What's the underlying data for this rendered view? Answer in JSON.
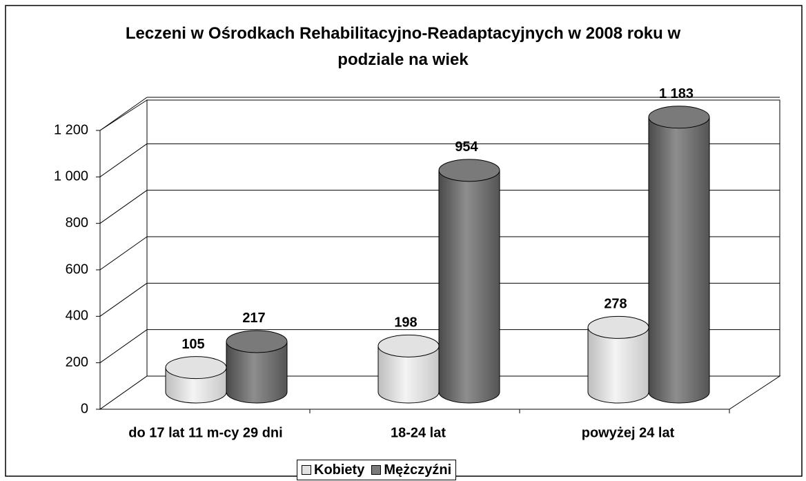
{
  "chart_data": {
    "type": "bar3d-cylinder",
    "title": "Leczeni w Ośrodkach Rehabilitacyjno-Readaptacyjnych w 2008 roku w podziale na wiek",
    "categories": [
      "do 17 lat 11 m-cy 29 dni",
      "18-24 lat",
      "powyżej 24 lat"
    ],
    "series": [
      {
        "name": "Kobiety",
        "color": "#e2e2e2",
        "values": [
          105,
          198,
          278
        ],
        "value_labels": [
          "105",
          "198",
          "278"
        ]
      },
      {
        "name": "Mężczyźni",
        "color": "#7a7a7a",
        "values": [
          217,
          954,
          1183
        ],
        "value_labels": [
          "217",
          "954",
          "1 183"
        ]
      }
    ],
    "ylim": [
      0,
      1200
    ],
    "yticks": [
      0,
      200,
      400,
      600,
      800,
      {
        "value": 1000,
        "label": "1 000"
      },
      {
        "value": 1200,
        "label": "1 200"
      }
    ],
    "grid": true,
    "legend": "bottom"
  }
}
